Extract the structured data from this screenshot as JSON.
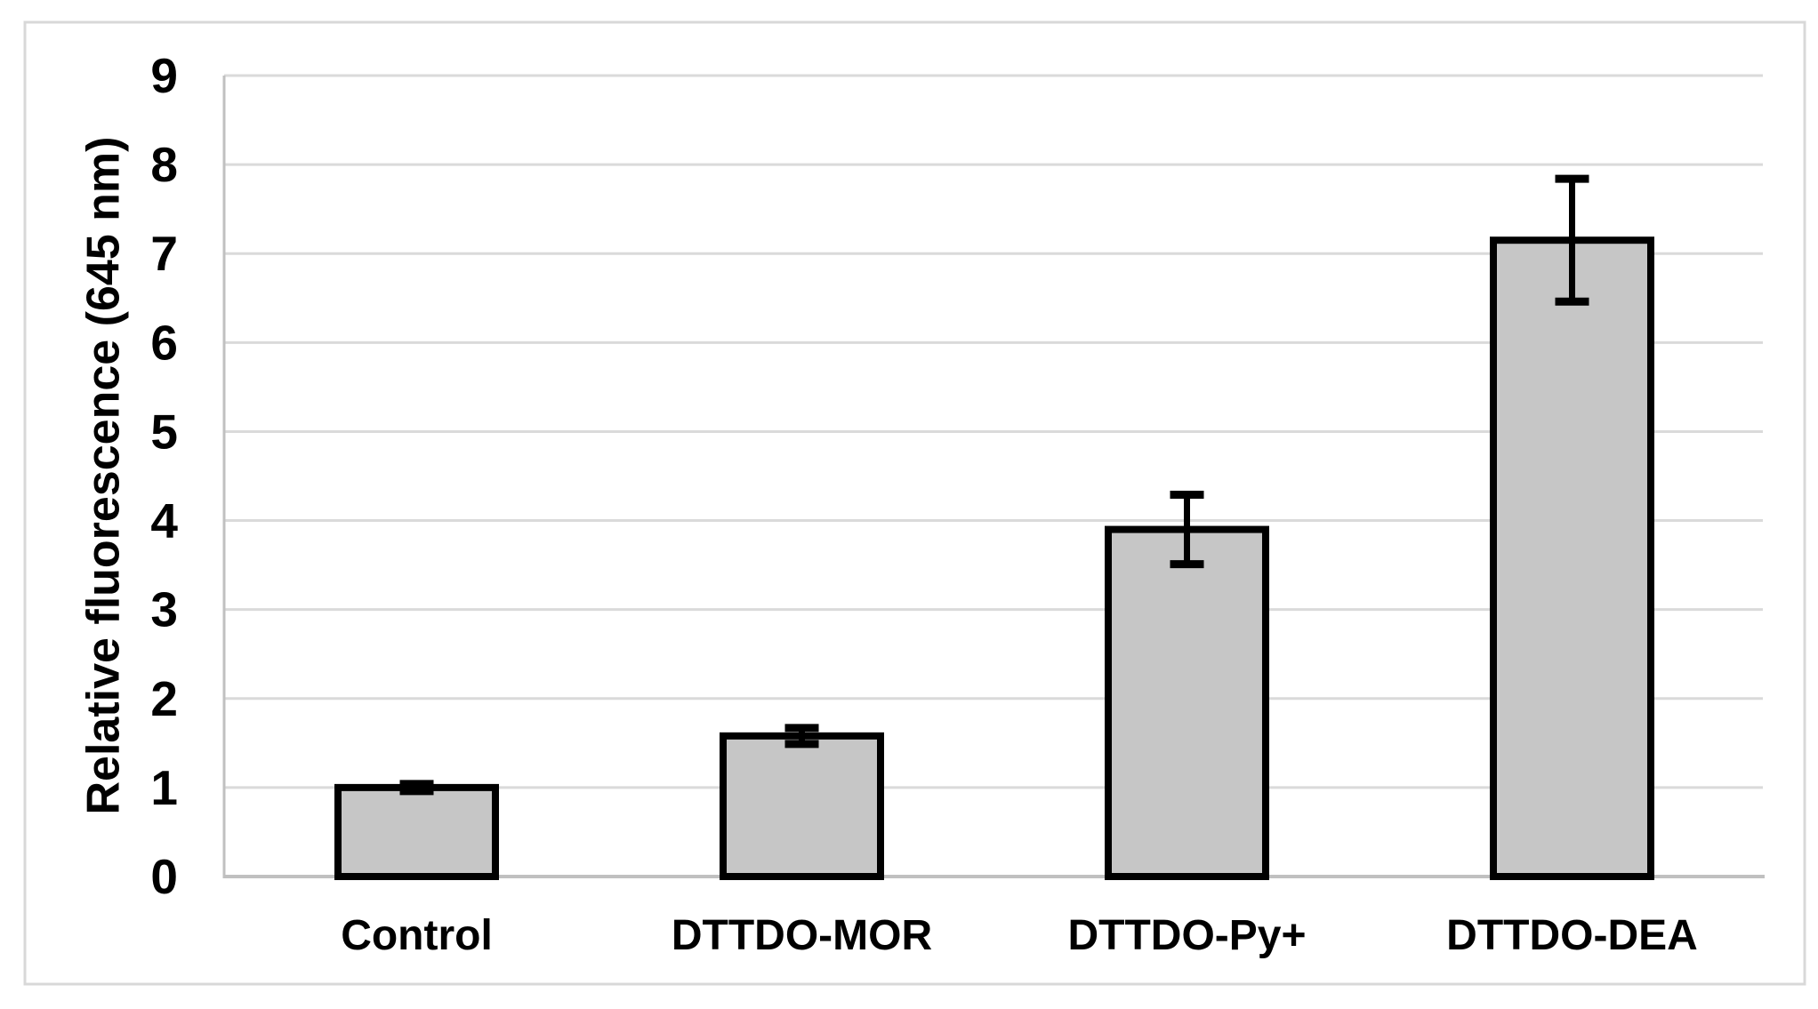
{
  "figure": {
    "background": "#ffffff",
    "border_color": "#d8d8d8"
  },
  "chart_data": {
    "type": "bar",
    "title": "",
    "xlabel": "",
    "ylabel": "Relative fluorescence (645 nm)",
    "categories": [
      "Control",
      "DTTDO-MOR",
      "DTTDO-Py+",
      "DTTDO-DEA"
    ],
    "values": [
      1.0,
      1.58,
      3.9,
      7.15
    ],
    "error_bars": [
      0.04,
      0.09,
      0.39,
      0.69
    ],
    "ylim": [
      0,
      9
    ],
    "yticks": [
      0,
      1,
      2,
      3,
      4,
      5,
      6,
      7,
      8,
      9
    ],
    "grid": true,
    "legend": false,
    "bar_fill_color": "#c6c6c6",
    "bar_border_color": "#000000",
    "error_bar_color": "#000000",
    "gridline_color": "#dadada",
    "axis_line_color": "#c0c0c0",
    "label_color": "#000000"
  }
}
